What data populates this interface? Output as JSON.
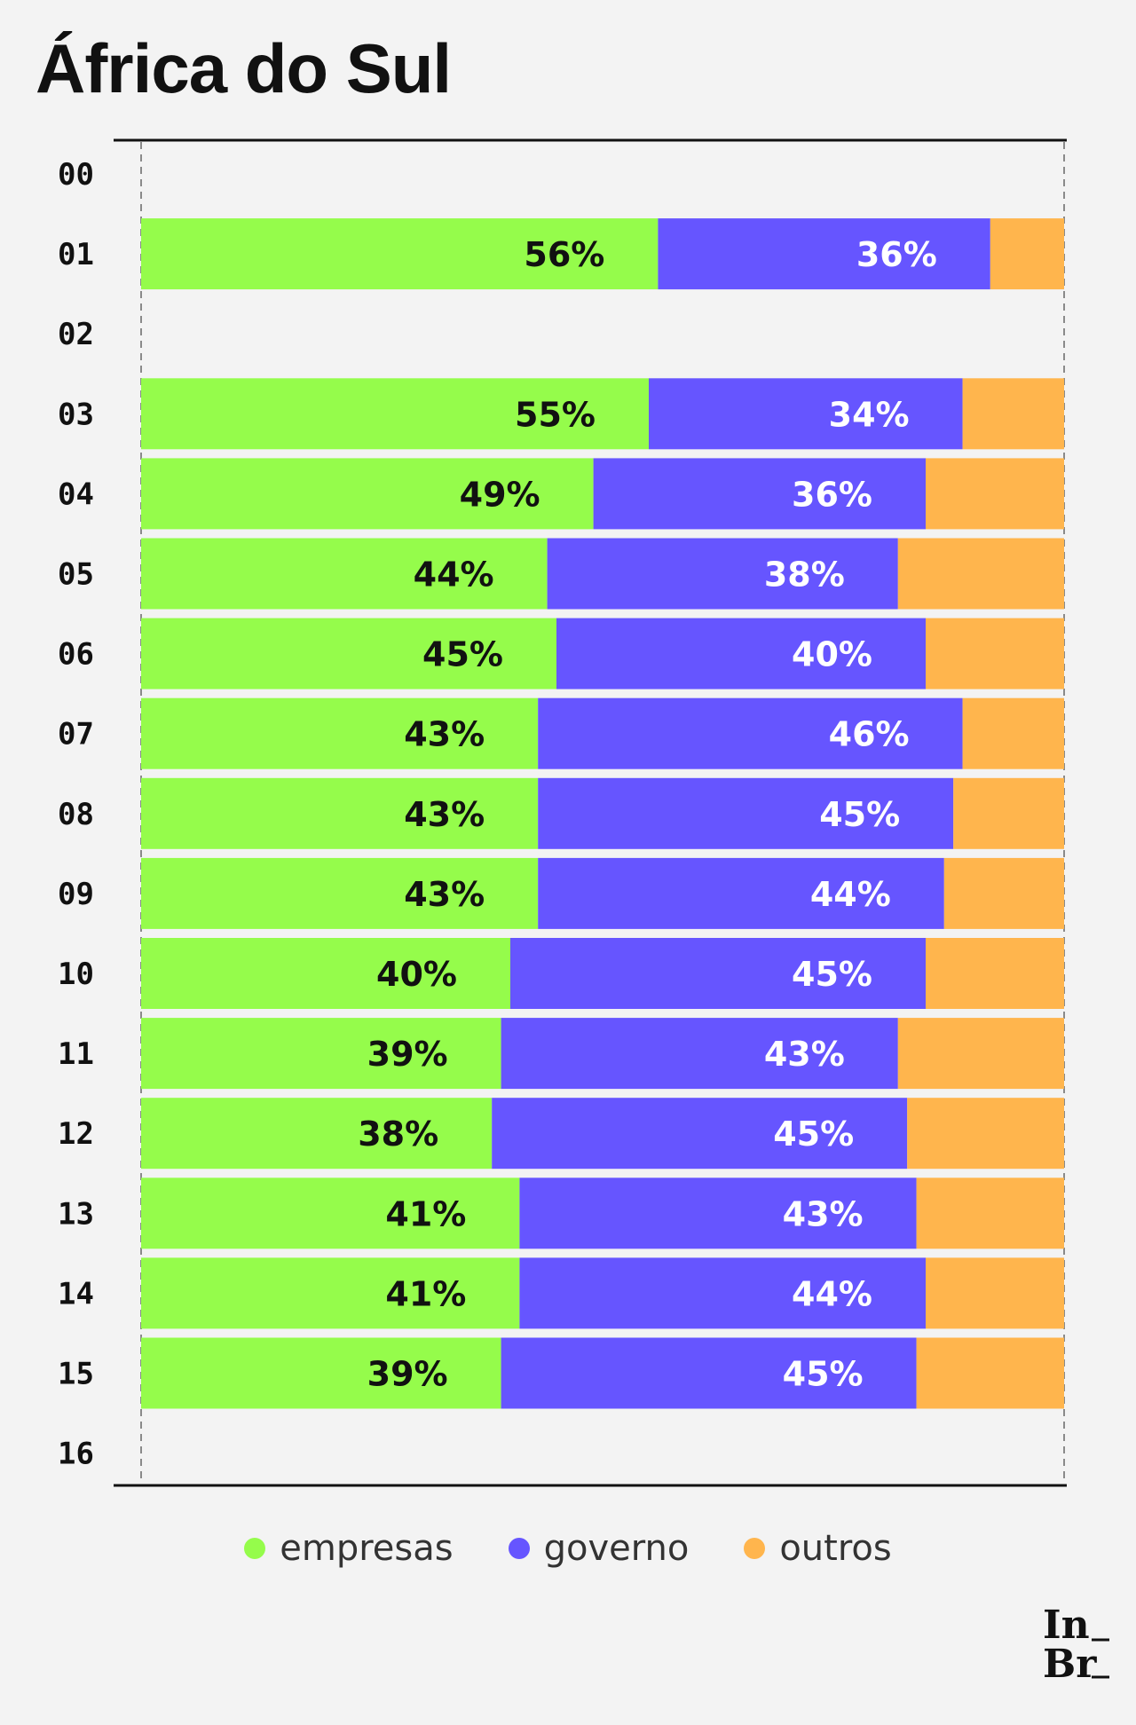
{
  "chart_data": {
    "type": "bar",
    "orientation": "horizontal",
    "stacked": true,
    "title": "África do Sul",
    "categories": [
      "00",
      "01",
      "02",
      "03",
      "04",
      "05",
      "06",
      "07",
      "08",
      "09",
      "10",
      "11",
      "12",
      "13",
      "14",
      "15",
      "16"
    ],
    "series": [
      {
        "name": "empresas",
        "color": "#95fc4b",
        "label_color": "#111111",
        "values": [
          null,
          56,
          null,
          55,
          49,
          44,
          45,
          43,
          43,
          43,
          40,
          39,
          38,
          41,
          41,
          39,
          null
        ]
      },
      {
        "name": "governo",
        "color": "#6655ff",
        "label_color": "#ffffff",
        "values": [
          null,
          36,
          null,
          34,
          36,
          38,
          40,
          46,
          45,
          44,
          45,
          43,
          45,
          43,
          44,
          45,
          null
        ]
      },
      {
        "name": "outros",
        "color": "#ffb54d",
        "label_color": "#ffffff",
        "values": [
          null,
          8,
          null,
          11,
          15,
          18,
          15,
          11,
          12,
          13,
          15,
          18,
          17,
          16,
          15,
          16,
          null
        ]
      }
    ],
    "value_labels_for": [
      "empresas",
      "governo"
    ],
    "xlim": [
      0,
      100
    ],
    "value_suffix": "%",
    "legend_position": "bottom-center"
  }
}
